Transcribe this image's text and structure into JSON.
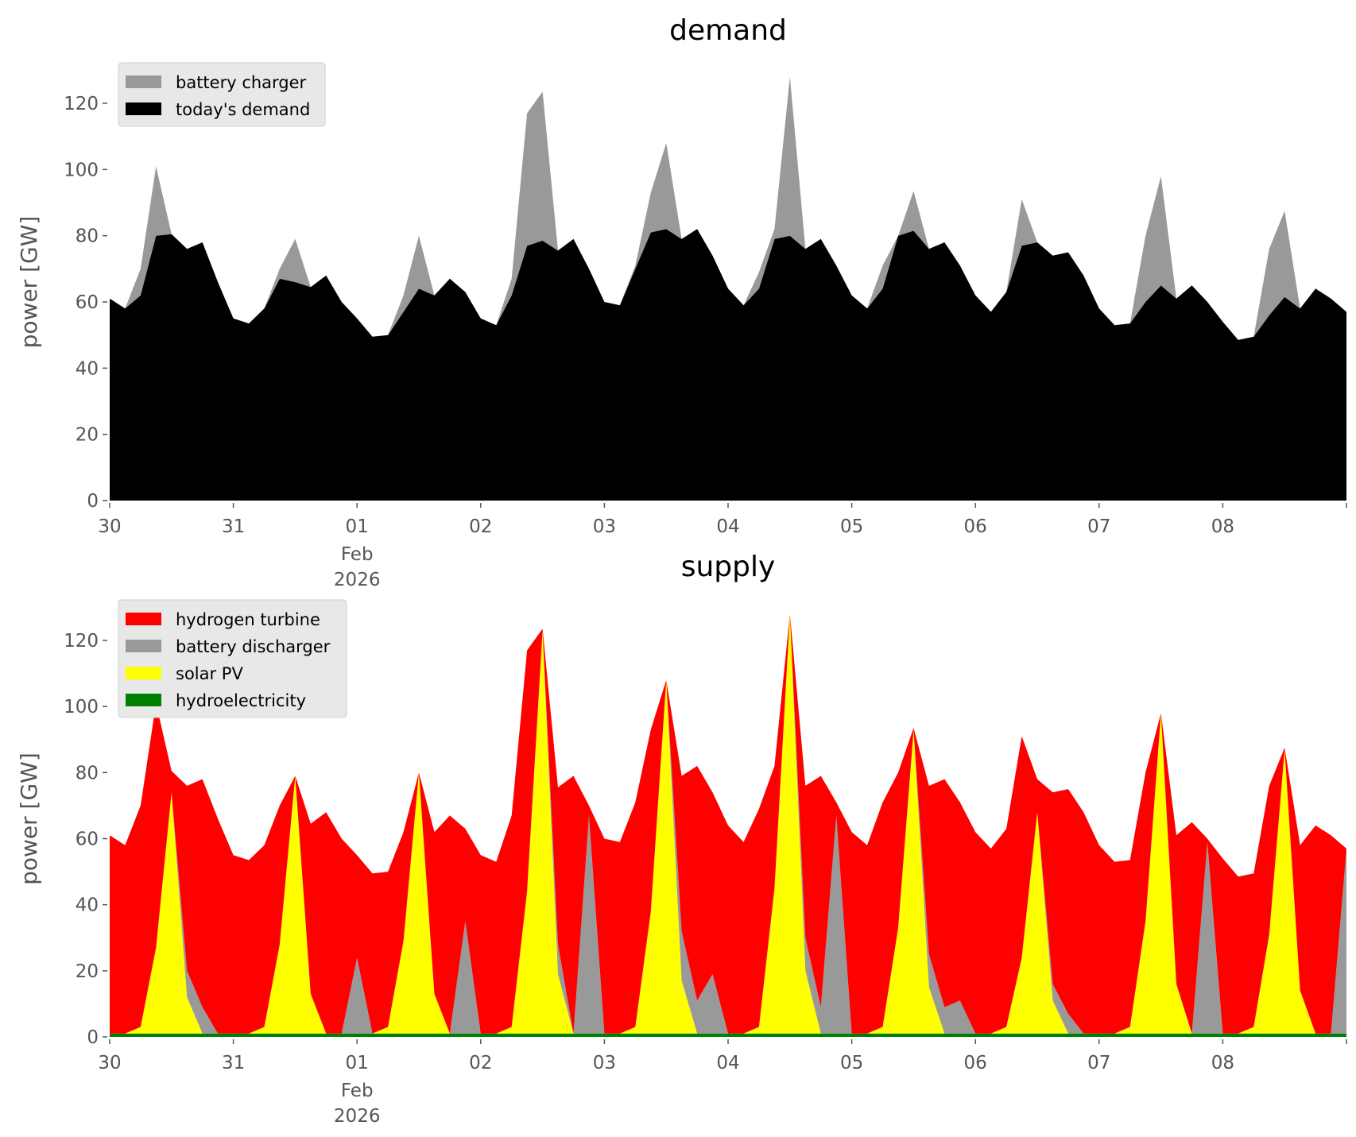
{
  "chart_data": [
    {
      "type": "area",
      "title": "demand",
      "ylabel": "power [GW]",
      "xlabel": "",
      "ylim": [
        0,
        132
      ],
      "yticks": [
        0,
        20,
        40,
        60,
        80,
        100,
        120
      ],
      "xtick_labels": [
        "30",
        "31",
        "01",
        "02",
        "03",
        "04",
        "05",
        "06",
        "07",
        "08"
      ],
      "xtick_sublabel": {
        "month": "Feb",
        "year": "2026"
      },
      "time_step_hours": 3,
      "start": "2026-01-30 00:00",
      "legend_position": "top-left",
      "stacked": true,
      "series": [
        {
          "name": "today's demand",
          "color": "#000000",
          "values": [
            61,
            58,
            62,
            80,
            80.5,
            76,
            78,
            66,
            55,
            53.5,
            58,
            67,
            66,
            64.5,
            68,
            60,
            55,
            49.5,
            50,
            57,
            64,
            62,
            67,
            63,
            55,
            53,
            62,
            77,
            78.5,
            75.5,
            79,
            70,
            60,
            59,
            70,
            81,
            82,
            79,
            82,
            74,
            64,
            59,
            64,
            79,
            80,
            76,
            79,
            71,
            62,
            58,
            64,
            80,
            81.5,
            76,
            78,
            71,
            62,
            57,
            63,
            77,
            78,
            74,
            75,
            68,
            58,
            53,
            53.5,
            60,
            65,
            61,
            65,
            60,
            54,
            48.5,
            49.5,
            56,
            61.5,
            58,
            64,
            61,
            57
          ]
        },
        {
          "name": "battery charger",
          "color": "#999999",
          "values": [
            0,
            0,
            8,
            21,
            0,
            0,
            0,
            0,
            0,
            0,
            0,
            3,
            13,
            0,
            0,
            0,
            0,
            0,
            0,
            5,
            16,
            0,
            0,
            0,
            0,
            0,
            5,
            40,
            45,
            0,
            0,
            0,
            0,
            0,
            1,
            12,
            26,
            0,
            0,
            0,
            0,
            0,
            5,
            3,
            48,
            0,
            0,
            0,
            0,
            0,
            7,
            0,
            12,
            0,
            0,
            0,
            0,
            0,
            0,
            14,
            0,
            0,
            0,
            0,
            0,
            0,
            0,
            20,
            33,
            0,
            0,
            0,
            0,
            0,
            0,
            20,
            26,
            0,
            0,
            0,
            0
          ]
        }
      ],
      "legend_order": [
        "battery charger",
        "today's demand"
      ]
    },
    {
      "type": "area",
      "title": "supply",
      "ylabel": "power [GW]",
      "xlabel": "",
      "ylim": [
        0,
        132
      ],
      "yticks": [
        0,
        20,
        40,
        60,
        80,
        100,
        120
      ],
      "xtick_labels": [
        "30",
        "31",
        "01",
        "02",
        "03",
        "04",
        "05",
        "06",
        "07",
        "08"
      ],
      "xtick_sublabel": {
        "month": "Feb",
        "year": "2026"
      },
      "time_step_hours": 3,
      "start": "2026-01-30 00:00",
      "legend_position": "top-left",
      "stacked": true,
      "series": [
        {
          "name": "hydroelectricity",
          "color": "#008000",
          "values": [
            1,
            1,
            1,
            1,
            1,
            1,
            1,
            1,
            1,
            1,
            1,
            1,
            1,
            1,
            1,
            1,
            1,
            1,
            1,
            1,
            1,
            1,
            1,
            1,
            1,
            1,
            1,
            1,
            1,
            1,
            1,
            1,
            1,
            1,
            1,
            1,
            1,
            1,
            1,
            1,
            1,
            1,
            1,
            1,
            1,
            1,
            1,
            1,
            1,
            1,
            1,
            1,
            1,
            1,
            1,
            1,
            1,
            1,
            1,
            1,
            1,
            1,
            1,
            1,
            1,
            1,
            1,
            1,
            1,
            1,
            1,
            1,
            1,
            1,
            1,
            1,
            1,
            1,
            1,
            1,
            1
          ]
        },
        {
          "name": "solar PV",
          "color": "#ffff00",
          "values": [
            0,
            0,
            2,
            26,
            73,
            11,
            0,
            0,
            0,
            0,
            2,
            27,
            78,
            12,
            0,
            0,
            0,
            0,
            2,
            28,
            79,
            12,
            0,
            0,
            0,
            0,
            2,
            43,
            122,
            18,
            0,
            0,
            0,
            0,
            2,
            37,
            107,
            16,
            0,
            0,
            0,
            0,
            2,
            44,
            127,
            19,
            0,
            0,
            0,
            0,
            2,
            32,
            92,
            14,
            0,
            0,
            0,
            0,
            2,
            23,
            67,
            10,
            0,
            0,
            0,
            0,
            2,
            34,
            97,
            15,
            0,
            0,
            0,
            0,
            2,
            30,
            86,
            13,
            0,
            0,
            0
          ]
        },
        {
          "name": "battery discharger",
          "color": "#999999",
          "values": [
            0,
            0,
            0,
            0,
            0,
            8,
            8,
            0,
            0,
            0,
            0,
            0,
            0,
            0,
            0,
            0,
            23,
            0,
            0,
            0,
            0,
            0,
            0,
            34,
            0,
            0,
            0,
            0,
            0,
            9,
            0,
            66,
            0,
            0,
            0,
            0,
            0,
            15,
            10,
            18,
            0,
            0,
            0,
            0,
            0,
            10,
            8,
            66,
            0,
            0,
            0,
            0,
            0,
            10,
            8,
            10,
            0,
            0,
            0,
            0,
            0,
            5,
            6,
            0,
            0,
            0,
            0,
            0,
            0,
            0,
            0,
            58,
            0,
            0,
            0,
            0,
            0,
            0,
            0,
            0,
            56
          ]
        },
        {
          "name": "hydrogen turbine",
          "color": "#ff0000",
          "values": [
            60,
            57,
            67,
            74,
            6.5,
            56,
            69,
            65,
            54,
            52.5,
            55,
            42,
            0,
            51.5,
            67,
            59,
            31,
            48.5,
            47,
            33,
            0,
            49,
            66,
            28,
            54,
            52,
            64,
            73,
            0.5,
            47.5,
            78,
            3,
            59,
            58,
            68,
            55,
            0,
            47,
            71,
            55,
            63,
            58,
            66,
            37,
            0,
            46,
            70,
            4,
            61,
            57,
            68,
            47,
            0.5,
            51,
            69,
            60,
            61,
            56,
            60,
            67,
            10,
            58,
            68,
            67,
            57,
            52,
            50.5,
            45,
            0,
            45,
            64,
            1,
            53,
            47.5,
            46.5,
            45,
            0.5,
            44,
            63,
            60,
            0
          ]
        }
      ],
      "legend_order": [
        "hydrogen turbine",
        "battery discharger",
        "solar PV",
        "hydroelectricity"
      ]
    }
  ]
}
